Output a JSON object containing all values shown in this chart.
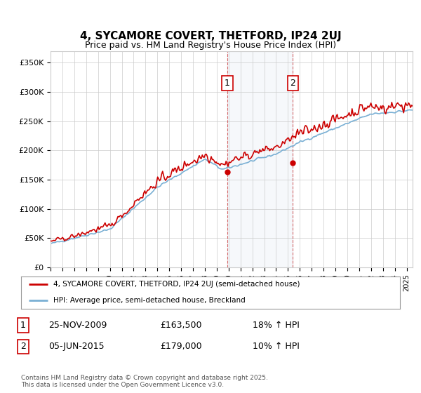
{
  "title": "4, SYCAMORE COVERT, THETFORD, IP24 2UJ",
  "subtitle": "Price paid vs. HM Land Registry's House Price Index (HPI)",
  "ylabel_ticks": [
    "£0",
    "£50K",
    "£100K",
    "£150K",
    "£200K",
    "£250K",
    "£300K",
    "£350K"
  ],
  "ytick_vals": [
    0,
    50000,
    100000,
    150000,
    200000,
    250000,
    300000,
    350000
  ],
  "ylim": [
    0,
    370000
  ],
  "red_color": "#cc0000",
  "blue_color": "#7ab0d4",
  "marker1_date": 2009.9,
  "marker2_date": 2015.42,
  "marker1_price": 163500,
  "marker2_price": 179000,
  "legend_label1": "4, SYCAMORE COVERT, THETFORD, IP24 2UJ (semi-detached house)",
  "legend_label2": "HPI: Average price, semi-detached house, Breckland",
  "table_entries": [
    {
      "num": "1",
      "date": "25-NOV-2009",
      "price": "£163,500",
      "change": "18% ↑ HPI"
    },
    {
      "num": "2",
      "date": "05-JUN-2015",
      "price": "£179,000",
      "change": "10% ↑ HPI"
    }
  ],
  "footer": "Contains HM Land Registry data © Crown copyright and database right 2025.\nThis data is licensed under the Open Government Licence v3.0.",
  "background_color": "#ffffff",
  "grid_color": "#cccccc"
}
